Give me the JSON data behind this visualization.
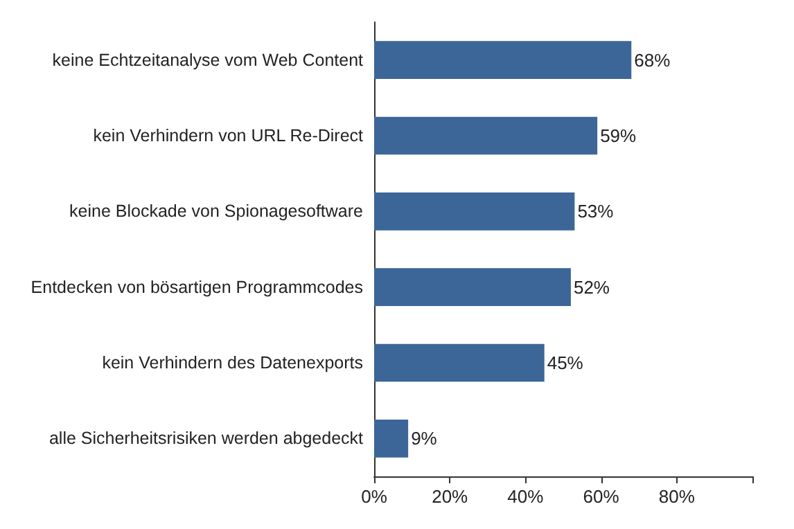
{
  "chart_data": {
    "type": "bar",
    "orientation": "horizontal",
    "categories": [
      "keine Echtzeitanalyse vom Web Content",
      "kein Verhindern von URL Re-Direct",
      "keine Blockade von Spionagesoftware",
      "Entdecken von bösartigen Programmcodes",
      "kein Verhindern des Datenexports",
      "alle Sicherheitsrisiken werden abgedeckt"
    ],
    "values": [
      68,
      59,
      53,
      52,
      45,
      9
    ],
    "value_labels": [
      "68%",
      "59%",
      "53%",
      "52%",
      "45%",
      "9%"
    ],
    "color": "#3b6697",
    "xlim": [
      0,
      100
    ],
    "xticks": [
      {
        "value": 0,
        "label": "0%"
      },
      {
        "value": 20,
        "label": "20%"
      },
      {
        "value": 40,
        "label": "40%"
      },
      {
        "value": 60,
        "label": "60%"
      },
      {
        "value": 80,
        "label": "80%"
      },
      {
        "value": 100,
        "label": null
      }
    ],
    "grid": false
  }
}
